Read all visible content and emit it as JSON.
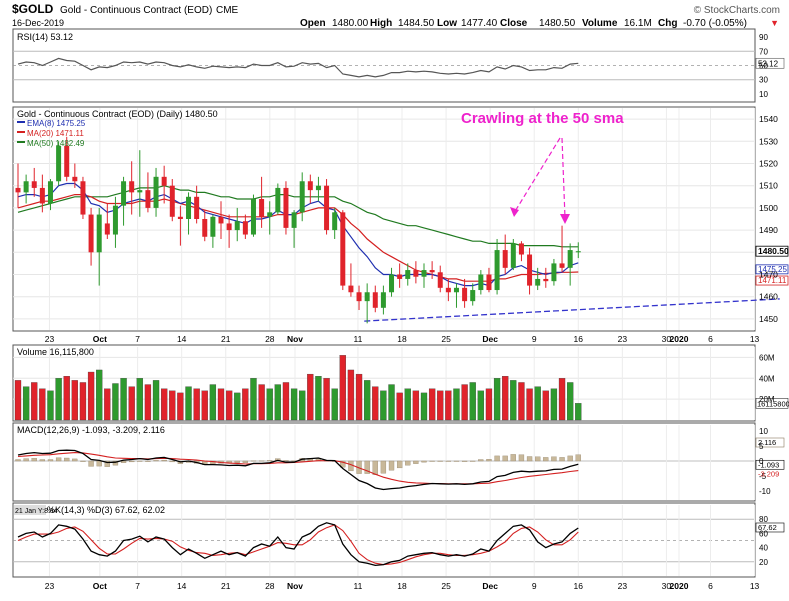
{
  "header": {
    "symbol": "$GOLD",
    "name": "Gold - Continuous Contract (EOD)",
    "exchange": "CME",
    "credit": "© StockCharts.com",
    "date": "16-Dec-2019",
    "open_label": "Open",
    "open": "1480.00",
    "high_label": "High",
    "high": "1484.50",
    "low_label": "Low",
    "low": "1477.40",
    "close_label": "Close",
    "close": "1480.50",
    "volume_label": "Volume",
    "volume": "16.1M",
    "chg_label": "Chg",
    "chg": "-0.70 (-0.05%)",
    "chg_arrow": "▼"
  },
  "colors": {
    "up": "#2e9a2e",
    "down": "#e0232b",
    "ema8": "#1f2fb0",
    "ma20": "#d42020",
    "ma50": "#207a20",
    "annotation": "#ee22cc",
    "trendline": "#3333cc",
    "vol_up": "#2e9a2e",
    "vol_down": "#e0232b"
  },
  "rsi": {
    "legend": "RSI(14) 53.12",
    "last": "53.12",
    "ticks": [
      "90",
      "70",
      "50",
      "30",
      "10"
    ]
  },
  "price": {
    "legend": "Gold - Continuous Contract (EOD) (Daily) 1480.50",
    "ema8": "EMA(8) 1475.25",
    "ma20": "MA(20) 1471.11",
    "ma50": "MA(50) 1482.49",
    "ticks": [
      "1540",
      "1530",
      "1520",
      "1510",
      "1500",
      "1490",
      "1470",
      "1460",
      "1450"
    ],
    "last_close": "1480.50",
    "last_ema8": "1475.25",
    "last_ma20": "1471.11",
    "annotation": "Crawling at the 50 sma"
  },
  "volume": {
    "legend": "Volume 16,115,800",
    "ticks": [
      "60M",
      "40M",
      "20M"
    ],
    "last": "16115800"
  },
  "macd": {
    "legend_main": "MACD(12,26,9) -1.093, -3.209, 2.116",
    "ticks": [
      "10",
      "5",
      "0",
      "-5",
      "-10"
    ],
    "last_hist": "2.116",
    "last_macd": "-1.093",
    "last_signal": "-3.209"
  },
  "stoch": {
    "legend_main": "%K(14,3) %D(3) 67.62, 62.02",
    "note": "21 Jan Y:8.84",
    "ticks": [
      "80",
      "60",
      "40",
      "20"
    ],
    "last_k": "67.62"
  },
  "xaxis": {
    "labels": [
      "23",
      "Oct",
      "7",
      "14",
      "21",
      "28",
      "Nov",
      "11",
      "18",
      "25",
      "Dec",
      "9",
      "16",
      "23",
      "30",
      "2020",
      "6",
      "13"
    ]
  },
  "chart_data": {
    "type": "candlestick",
    "title": "Gold - Continuous Contract (EOD) (Daily)",
    "x_start": "2019-09-18",
    "x_end": "2019-12-16",
    "ylim": [
      1445,
      1545
    ],
    "candles": [
      {
        "open": 1509,
        "high": 1520,
        "low": 1500,
        "close": 1507
      },
      {
        "open": 1507,
        "high": 1515,
        "low": 1502,
        "close": 1512
      },
      {
        "open": 1512,
        "high": 1518,
        "low": 1505,
        "close": 1509
      },
      {
        "open": 1509,
        "high": 1515,
        "low": 1498,
        "close": 1502
      },
      {
        "open": 1502,
        "high": 1513,
        "low": 1499,
        "close": 1512
      },
      {
        "open": 1512,
        "high": 1530,
        "low": 1510,
        "close": 1528
      },
      {
        "open": 1528,
        "high": 1532,
        "low": 1512,
        "close": 1514
      },
      {
        "open": 1514,
        "high": 1520,
        "low": 1509,
        "close": 1512
      },
      {
        "open": 1512,
        "high": 1514,
        "low": 1495,
        "close": 1497
      },
      {
        "open": 1497,
        "high": 1500,
        "low": 1474,
        "close": 1480
      },
      {
        "open": 1480,
        "high": 1500,
        "low": 1465,
        "close": 1497
      },
      {
        "open": 1493,
        "high": 1502,
        "low": 1486,
        "close": 1488
      },
      {
        "open": 1488,
        "high": 1505,
        "low": 1482,
        "close": 1501
      },
      {
        "open": 1501,
        "high": 1514,
        "low": 1492,
        "close": 1512
      },
      {
        "open": 1512,
        "high": 1521,
        "low": 1497,
        "close": 1507
      },
      {
        "open": 1507,
        "high": 1526,
        "low": 1496,
        "close": 1508
      },
      {
        "open": 1508,
        "high": 1516,
        "low": 1498,
        "close": 1500
      },
      {
        "open": 1500,
        "high": 1518,
        "low": 1496,
        "close": 1514
      },
      {
        "open": 1514,
        "high": 1519,
        "low": 1502,
        "close": 1510
      },
      {
        "open": 1510,
        "high": 1513,
        "low": 1494,
        "close": 1496
      },
      {
        "open": 1496,
        "high": 1501,
        "low": 1483,
        "close": 1495
      },
      {
        "open": 1495,
        "high": 1507,
        "low": 1488,
        "close": 1505
      },
      {
        "open": 1505,
        "high": 1510,
        "low": 1493,
        "close": 1495
      },
      {
        "open": 1495,
        "high": 1499,
        "low": 1485,
        "close": 1487
      },
      {
        "open": 1487,
        "high": 1497,
        "low": 1482,
        "close": 1496
      },
      {
        "open": 1496,
        "high": 1503,
        "low": 1486,
        "close": 1493
      },
      {
        "open": 1493,
        "high": 1497,
        "low": 1482,
        "close": 1490
      },
      {
        "open": 1490,
        "high": 1500,
        "low": 1485,
        "close": 1494
      },
      {
        "open": 1494,
        "high": 1497,
        "low": 1486,
        "close": 1488
      },
      {
        "open": 1488,
        "high": 1506,
        "low": 1487,
        "close": 1504
      },
      {
        "open": 1504,
        "high": 1514,
        "low": 1491,
        "close": 1496
      },
      {
        "open": 1496,
        "high": 1503,
        "low": 1488,
        "close": 1498
      },
      {
        "open": 1498,
        "high": 1511,
        "low": 1497,
        "close": 1509
      },
      {
        "open": 1509,
        "high": 1512,
        "low": 1488,
        "close": 1491
      },
      {
        "open": 1491,
        "high": 1499,
        "low": 1482,
        "close": 1498
      },
      {
        "open": 1498,
        "high": 1516,
        "low": 1494,
        "close": 1512
      },
      {
        "open": 1512,
        "high": 1515,
        "low": 1502,
        "close": 1508
      },
      {
        "open": 1508,
        "high": 1514,
        "low": 1503,
        "close": 1510
      },
      {
        "open": 1510,
        "high": 1513,
        "low": 1488,
        "close": 1490
      },
      {
        "open": 1490,
        "high": 1500,
        "low": 1486,
        "close": 1498
      },
      {
        "open": 1498,
        "high": 1499,
        "low": 1463,
        "close": 1465
      },
      {
        "open": 1465,
        "high": 1475,
        "low": 1460,
        "close": 1462
      },
      {
        "open": 1462,
        "high": 1465,
        "low": 1454,
        "close": 1458
      },
      {
        "open": 1458,
        "high": 1466,
        "low": 1448,
        "close": 1462
      },
      {
        "open": 1462,
        "high": 1465,
        "low": 1453,
        "close": 1455
      },
      {
        "open": 1455,
        "high": 1465,
        "low": 1452,
        "close": 1462
      },
      {
        "open": 1462,
        "high": 1473,
        "low": 1460,
        "close": 1470
      },
      {
        "open": 1470,
        "high": 1475,
        "low": 1464,
        "close": 1468
      },
      {
        "open": 1468,
        "high": 1475,
        "low": 1465,
        "close": 1472
      },
      {
        "open": 1472,
        "high": 1476,
        "low": 1466,
        "close": 1469
      },
      {
        "open": 1469,
        "high": 1475,
        "low": 1464,
        "close": 1472
      },
      {
        "open": 1472,
        "high": 1476,
        "low": 1468,
        "close": 1471
      },
      {
        "open": 1471,
        "high": 1474,
        "low": 1462,
        "close": 1464
      },
      {
        "open": 1464,
        "high": 1468,
        "low": 1458,
        "close": 1462
      },
      {
        "open": 1462,
        "high": 1466,
        "low": 1455,
        "close": 1464
      },
      {
        "open": 1464,
        "high": 1468,
        "low": 1455,
        "close": 1458
      },
      {
        "open": 1458,
        "high": 1466,
        "low": 1456,
        "close": 1463
      },
      {
        "open": 1463,
        "high": 1472,
        "low": 1461,
        "close": 1470
      },
      {
        "open": 1470,
        "high": 1473,
        "low": 1462,
        "close": 1463
      },
      {
        "open": 1463,
        "high": 1486,
        "low": 1461,
        "close": 1481
      },
      {
        "open": 1481,
        "high": 1488,
        "low": 1470,
        "close": 1473
      },
      {
        "open": 1473,
        "high": 1486,
        "low": 1472,
        "close": 1484
      },
      {
        "open": 1484,
        "high": 1485,
        "low": 1476,
        "close": 1479
      },
      {
        "open": 1479,
        "high": 1482,
        "low": 1461,
        "close": 1465
      },
      {
        "open": 1465,
        "high": 1473,
        "low": 1463,
        "close": 1468
      },
      {
        "open": 1468,
        "high": 1473,
        "low": 1464,
        "close": 1467
      },
      {
        "open": 1467,
        "high": 1477,
        "low": 1465,
        "close": 1475
      },
      {
        "open": 1475,
        "high": 1492,
        "low": 1471,
        "close": 1473
      },
      {
        "open": 1473,
        "high": 1484,
        "low": 1465,
        "close": 1481
      },
      {
        "open": 1480,
        "high": 1484.5,
        "low": 1477.4,
        "close": 1480.5
      }
    ],
    "volume_millions": [
      38,
      32,
      36,
      30,
      28,
      40,
      42,
      38,
      36,
      46,
      48,
      30,
      35,
      40,
      32,
      40,
      34,
      38,
      30,
      28,
      26,
      32,
      30,
      28,
      34,
      30,
      28,
      26,
      30,
      40,
      34,
      30,
      34,
      36,
      30,
      28,
      44,
      42,
      40,
      30,
      62,
      48,
      44,
      38,
      32,
      28,
      34,
      26,
      30,
      28,
      26,
      30,
      28,
      28,
      30,
      34,
      36,
      28,
      30,
      40,
      42,
      38,
      36,
      30,
      32,
      28,
      30,
      40,
      36,
      16
    ],
    "ma50": [
      1498,
      1499,
      1500,
      1501,
      1502,
      1503,
      1504,
      1505,
      1505,
      1505,
      1505,
      1505,
      1506,
      1507,
      1508,
      1509,
      1509,
      1509,
      1510,
      1509,
      1508,
      1508,
      1507,
      1507,
      1506,
      1505,
      1505,
      1504,
      1504,
      1504,
      1505,
      1505,
      1506,
      1506,
      1505,
      1505,
      1505,
      1505,
      1505,
      1505,
      1503,
      1502,
      1500,
      1498,
      1497,
      1495,
      1494,
      1493,
      1492,
      1492,
      1491,
      1490,
      1489,
      1488,
      1487,
      1486,
      1485,
      1485,
      1484,
      1484,
      1484,
      1484,
      1483,
      1483,
      1483,
      1483,
      1483,
      1482.5,
      1482.5,
      1482.49
    ],
    "ma20": [
      1500,
      1501,
      1502,
      1503,
      1503,
      1504,
      1505,
      1506,
      1506,
      1505,
      1503,
      1502,
      1502,
      1502,
      1502,
      1503,
      1503,
      1503,
      1504,
      1503,
      1502,
      1501,
      1500,
      1499,
      1498,
      1497,
      1496,
      1496,
      1496,
      1496,
      1496,
      1496,
      1497,
      1497,
      1497,
      1498,
      1499,
      1500,
      1500,
      1500,
      1497,
      1493,
      1490,
      1486,
      1483,
      1480,
      1478,
      1476,
      1474,
      1472,
      1471,
      1470,
      1469,
      1468,
      1468,
      1467,
      1467,
      1467,
      1467,
      1468,
      1468,
      1469,
      1470,
      1470,
      1470,
      1470.5,
      1470.5,
      1471,
      1471,
      1471.11
    ],
    "ema8": [
      1505,
      1506,
      1506,
      1505,
      1506,
      1510,
      1511,
      1511,
      1508,
      1502,
      1501,
      1498,
      1499,
      1502,
      1503,
      1504,
      1503,
      1505,
      1506,
      1504,
      1502,
      1503,
      1501,
      1498,
      1497,
      1496,
      1495,
      1494,
      1493,
      1495,
      1495,
      1496,
      1499,
      1497,
      1497,
      1500,
      1502,
      1503,
      1500,
      1499,
      1492,
      1487,
      1482,
      1478,
      1473,
      1470,
      1470,
      1469,
      1470,
      1470,
      1470,
      1470,
      1469,
      1467,
      1466,
      1465,
      1465,
      1466,
      1465,
      1469,
      1470,
      1473,
      1474,
      1472,
      1471,
      1470,
      1471,
      1471,
      1474,
      1475.25
    ],
    "rsi": [
      52,
      55,
      54,
      50,
      55,
      60,
      57,
      56,
      50,
      44,
      48,
      47,
      50,
      55,
      54,
      55,
      52,
      55,
      54,
      50,
      48,
      51,
      48,
      46,
      49,
      48,
      47,
      48,
      47,
      52,
      50,
      50,
      54,
      48,
      49,
      54,
      52,
      53,
      47,
      50,
      38,
      36,
      34,
      36,
      34,
      36,
      40,
      40,
      42,
      41,
      42,
      41,
      39,
      38,
      39,
      38,
      40,
      43,
      41,
      48,
      45,
      50,
      48,
      43,
      44,
      44,
      47,
      46,
      52,
      53.12
    ],
    "macd": [
      2,
      2.5,
      2.8,
      2.5,
      2.6,
      3.5,
      3.6,
      3.5,
      2.5,
      0.5,
      0.2,
      -0.5,
      -0.4,
      0.3,
      0.5,
      0.8,
      0.5,
      1,
      1.2,
      0.5,
      -0.3,
      0,
      -0.5,
      -1.2,
      -1.2,
      -1.3,
      -1.5,
      -1.4,
      -1.6,
      -0.8,
      -0.8,
      -0.6,
      0.2,
      -0.4,
      -0.4,
      0.6,
      0.8,
      1,
      0.2,
      0.1,
      -2.5,
      -4.5,
      -6.5,
      -7.5,
      -9,
      -9.5,
      -9.2,
      -9,
      -8.5,
      -8.2,
      -7.8,
      -7.5,
      -7.6,
      -7.7,
      -7.6,
      -7.8,
      -7.6,
      -7,
      -6.8,
      -5.2,
      -4.8,
      -3.8,
      -3.4,
      -3.6,
      -3.4,
      -3.3,
      -2.8,
      -2.7,
      -1.8,
      -1.093
    ],
    "macd_signal": [
      1.5,
      1.7,
      1.9,
      2,
      2.1,
      2.4,
      2.6,
      2.8,
      2.7,
      2.3,
      1.9,
      1.4,
      1,
      0.9,
      0.8,
      0.8,
      0.7,
      0.8,
      0.9,
      0.8,
      0.6,
      0.5,
      0.3,
      0,
      -0.2,
      -0.5,
      -0.7,
      -0.8,
      -1,
      -0.9,
      -0.9,
      -0.8,
      -0.6,
      -0.6,
      -0.5,
      -0.3,
      -0.1,
      0.1,
      0.1,
      0.1,
      -0.4,
      -1.2,
      -2.3,
      -3.3,
      -4.4,
      -5.4,
      -6.1,
      -6.7,
      -7.1,
      -7.3,
      -7.4,
      -7.5,
      -7.5,
      -7.6,
      -7.6,
      -7.6,
      -7.6,
      -7.5,
      -7.4,
      -6.9,
      -6.5,
      -6,
      -5.5,
      -5.1,
      -4.8,
      -4.5,
      -4.2,
      -3.9,
      -3.5,
      -3.209
    ],
    "stoch_k": [
      55,
      60,
      62,
      55,
      60,
      72,
      70,
      66,
      52,
      35,
      30,
      28,
      35,
      50,
      52,
      56,
      48,
      55,
      52,
      40,
      30,
      38,
      32,
      25,
      30,
      35,
      30,
      33,
      28,
      40,
      45,
      42,
      55,
      40,
      38,
      55,
      60,
      70,
      75,
      72,
      45,
      30,
      20,
      18,
      15,
      16,
      20,
      22,
      28,
      30,
      32,
      33,
      30,
      28,
      30,
      28,
      31,
      38,
      35,
      50,
      60,
      70,
      72,
      65,
      48,
      40,
      45,
      48,
      60,
      67.62
    ],
    "stoch_d": [
      50,
      55,
      59,
      59,
      59,
      62,
      67,
      69,
      63,
      51,
      39,
      31,
      31,
      38,
      46,
      53,
      52,
      53,
      52,
      49,
      41,
      36,
      33,
      32,
      29,
      30,
      32,
      33,
      30,
      34,
      38,
      42,
      47,
      46,
      44,
      44,
      51,
      62,
      68,
      72,
      64,
      49,
      32,
      23,
      18,
      16,
      17,
      19,
      23,
      27,
      30,
      32,
      32,
      30,
      29,
      29,
      30,
      32,
      35,
      41,
      48,
      60,
      67,
      69,
      62,
      51,
      44,
      44,
      51,
      62.02
    ]
  }
}
